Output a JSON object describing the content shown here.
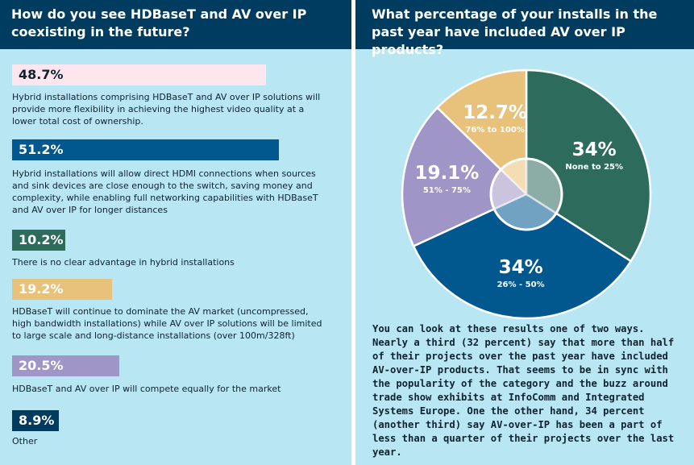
{
  "left": {
    "title": "How do you see HDBaseT and AV over IP coexisting in the future?",
    "colors": {
      "header": "#003c5f",
      "background": "#b8e6f3"
    },
    "chart_data": {
      "type": "bar",
      "title": "How do you see HDBaseT and AV over IP coexisting in the future?",
      "categories": [
        "Hybrid installations comprising HDBaseT and AV over IP solutions will provide more flexibility in achieving the highest video quality at a lower total cost of ownership.",
        "Hybrid installations will allow direct HDMI connections when sources and sink devices are close enough to the switch, saving money and complexity, while enabling full networking capabilities with HDBaseT and AV over IP for longer distances",
        "There is no clear advantage in hybrid installations",
        "HDBaseT will continue to dominate the AV market (uncompressed, high bandwidth installations) while AV over IP solutions will be limited to large scale and long-distance installations (over 100m/328ft)",
        "HDBaseT and AV over IP will compete equally for the market",
        "Other"
      ],
      "values": [
        48.7,
        51.2,
        10.2,
        19.2,
        20.5,
        8.9
      ],
      "value_labels": [
        "48.7%",
        "51.2%",
        "10.2%",
        "19.2%",
        "20.5%",
        "8.9%"
      ],
      "colors": [
        "#fde6ee",
        "#00588e",
        "#2d6b5c",
        "#e8c27a",
        "#9f95c6",
        "#003c5f"
      ],
      "label_colors": [
        "#0f2230",
        "#ffffff",
        "#ffffff",
        "#ffffff",
        "#ffffff",
        "#ffffff"
      ],
      "xlim": [
        0,
        51.2
      ]
    }
  },
  "right": {
    "title": "What percentage of your installs in the past year have included AV over IP products?",
    "chart_data": {
      "type": "pie",
      "title": "What percentage of your installs in the past year have included AV over IP products?",
      "categories": [
        "None to 25%",
        "26% - 50%",
        "51% - 75%",
        "76% to 100%"
      ],
      "values": [
        34,
        34,
        19.1,
        12.7
      ],
      "value_labels": [
        "34%",
        "34%",
        "19.1%",
        "12.7%"
      ],
      "colors": [
        "#2d6b5c",
        "#00588e",
        "#9f95c6",
        "#e8c27a"
      ],
      "start": "12 o'clock",
      "direction": "clockwise",
      "center_hole": true
    },
    "body": "You can look at these results one of two ways. Nearly a third (32 percent) say that more than half of their projects over the past year have included AV-over-IP products. That seems to be in sync with the popularity of the category and the buzz around trade show exhibits at InfoComm and Integrated Systems Europe. One the other hand, 34 percent (another third) say AV-over-IP has been a part of less than a quarter of their projects over the last year."
  }
}
